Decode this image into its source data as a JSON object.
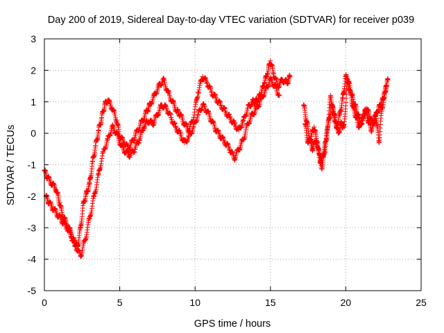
{
  "chart_data": {
    "type": "scatter",
    "title": "Day 200 of 2019, Sidereal Day-to-day VTEC variation (SDTVAR) for receiver p039",
    "xlabel": "GPS time / hours",
    "ylabel": "SDTVAR / TECUs",
    "xlim": [
      0,
      25
    ],
    "ylim": [
      -5,
      3
    ],
    "xticks": [
      0,
      5,
      10,
      15,
      20,
      25
    ],
    "yticks": [
      -5,
      -4,
      -3,
      -2,
      -1,
      0,
      1,
      2,
      3
    ],
    "grid": true,
    "marker": "plus",
    "series": [
      {
        "name": "p039",
        "color": "#ff0000",
        "trace_a": {
          "x": [
            0.0,
            0.2,
            0.5,
            0.8,
            1.0,
            1.2,
            1.5,
            1.8,
            2.0,
            2.2,
            2.4,
            2.6,
            2.8,
            3.0,
            3.2,
            3.4,
            3.6,
            3.8,
            4.0,
            4.2,
            4.5,
            4.8,
            5.0,
            5.3,
            5.6,
            5.9,
            6.2,
            6.5,
            6.8,
            7.0,
            7.3,
            7.6,
            7.9,
            8.2,
            8.5,
            8.8,
            9.0,
            9.3,
            9.6,
            9.9,
            10.2,
            10.5,
            10.8,
            11.1,
            11.4,
            11.7,
            12.0,
            12.3,
            12.6,
            12.9,
            13.2,
            13.5,
            13.8,
            14.0,
            14.2,
            14.4,
            14.6,
            14.8,
            15.0,
            15.2,
            15.5,
            15.8,
            16.1,
            16.3
          ],
          "y": [
            -1.2,
            -1.4,
            -1.6,
            -1.8,
            -2.2,
            -2.6,
            -2.9,
            -3.2,
            -3.5,
            -3.6,
            -3.0,
            -2.2,
            -1.9,
            -1.6,
            -0.9,
            -0.4,
            0.1,
            0.5,
            0.9,
            1.05,
            0.8,
            0.4,
            -0.1,
            -0.3,
            -0.5,
            -0.2,
            0.1,
            0.4,
            0.7,
            0.9,
            1.2,
            1.5,
            1.7,
            1.3,
            1.0,
            0.7,
            0.6,
            0.3,
            0.1,
            0.5,
            1.3,
            1.8,
            1.6,
            1.3,
            1.1,
            0.9,
            0.7,
            0.5,
            0.3,
            0.1,
            0.4,
            0.8,
            1.0,
            1.0,
            1.1,
            1.3,
            1.6,
            1.9,
            2.3,
            1.9,
            1.5,
            1.7,
            1.6,
            1.8
          ]
        },
        "trace_b": {
          "x": [
            0.1,
            0.3,
            0.6,
            0.9,
            1.2,
            1.5,
            1.8,
            2.1,
            2.4,
            2.7,
            3.0,
            3.3,
            3.6,
            3.9,
            4.2,
            4.5,
            4.8,
            5.1,
            5.4,
            5.7,
            6.0,
            6.3,
            6.6,
            6.9,
            7.2,
            7.5,
            7.8,
            8.1,
            8.4,
            8.7,
            9.0,
            9.3,
            9.6,
            9.9,
            10.2,
            10.5,
            10.8,
            11.1,
            11.4,
            11.7,
            12.0,
            12.3,
            12.6,
            12.9,
            13.2,
            13.5,
            13.8,
            14.1,
            14.4,
            14.7,
            15.0,
            15.3,
            15.6
          ],
          "y": [
            -2.0,
            -2.2,
            -2.4,
            -2.6,
            -2.8,
            -3.0,
            -3.3,
            -3.6,
            -3.9,
            -3.4,
            -2.7,
            -2.0,
            -1.3,
            -0.6,
            -0.2,
            0.2,
            0.0,
            -0.4,
            -0.6,
            -0.7,
            -0.5,
            -0.2,
            0.2,
            0.4,
            0.3,
            0.6,
            0.9,
            0.8,
            0.5,
            0.2,
            0.0,
            -0.3,
            -0.1,
            0.2,
            0.6,
            0.9,
            0.7,
            0.4,
            0.1,
            -0.1,
            -0.3,
            -0.5,
            -0.8,
            -0.5,
            -0.2,
            0.3,
            0.6,
            0.8,
            1.1,
            1.4,
            1.7,
            1.5,
            1.2
          ]
        },
        "trace_c": {
          "x": [
            17.2,
            17.4,
            17.6,
            17.8,
            18.0,
            18.2,
            18.4,
            18.6,
            18.8,
            19.0,
            19.2,
            19.4,
            19.6,
            19.8,
            20.0,
            20.2,
            20.4,
            20.6,
            20.8,
            21.0,
            21.2,
            21.4,
            21.6,
            21.8,
            22.0,
            22.2,
            22.4,
            22.6,
            22.8
          ],
          "y": [
            0.9,
            0.4,
            -0.2,
            -0.5,
            -0.2,
            -0.5,
            -1.1,
            -0.6,
            0.2,
            1.2,
            0.6,
            0.2,
            0.6,
            1.1,
            1.8,
            1.6,
            1.2,
            0.9,
            0.6,
            0.3,
            0.6,
            0.8,
            0.5,
            0.3,
            0.6,
            -0.3,
            0.8,
            1.3,
            1.7
          ]
        },
        "trace_d": {
          "x": [
            17.3,
            17.5,
            17.7,
            17.9,
            18.1,
            18.3,
            18.5,
            18.7,
            18.9,
            19.1,
            19.3,
            19.5,
            19.7,
            19.9,
            20.1,
            20.3,
            20.5,
            20.7,
            20.9,
            21.1,
            21.3,
            21.5,
            21.7,
            21.9,
            22.1,
            22.3,
            22.5,
            22.7
          ],
          "y": [
            0.3,
            -0.3,
            -0.1,
            0.2,
            -0.3,
            -0.9,
            -0.7,
            -0.2,
            0.5,
            0.9,
            0.4,
            0.0,
            0.3,
            0.2,
            1.7,
            1.3,
            0.8,
            0.5,
            0.2,
            0.4,
            0.7,
            0.4,
            0.1,
            0.4,
            0.7,
            0.9,
            1.1,
            1.5
          ]
        }
      }
    ]
  }
}
